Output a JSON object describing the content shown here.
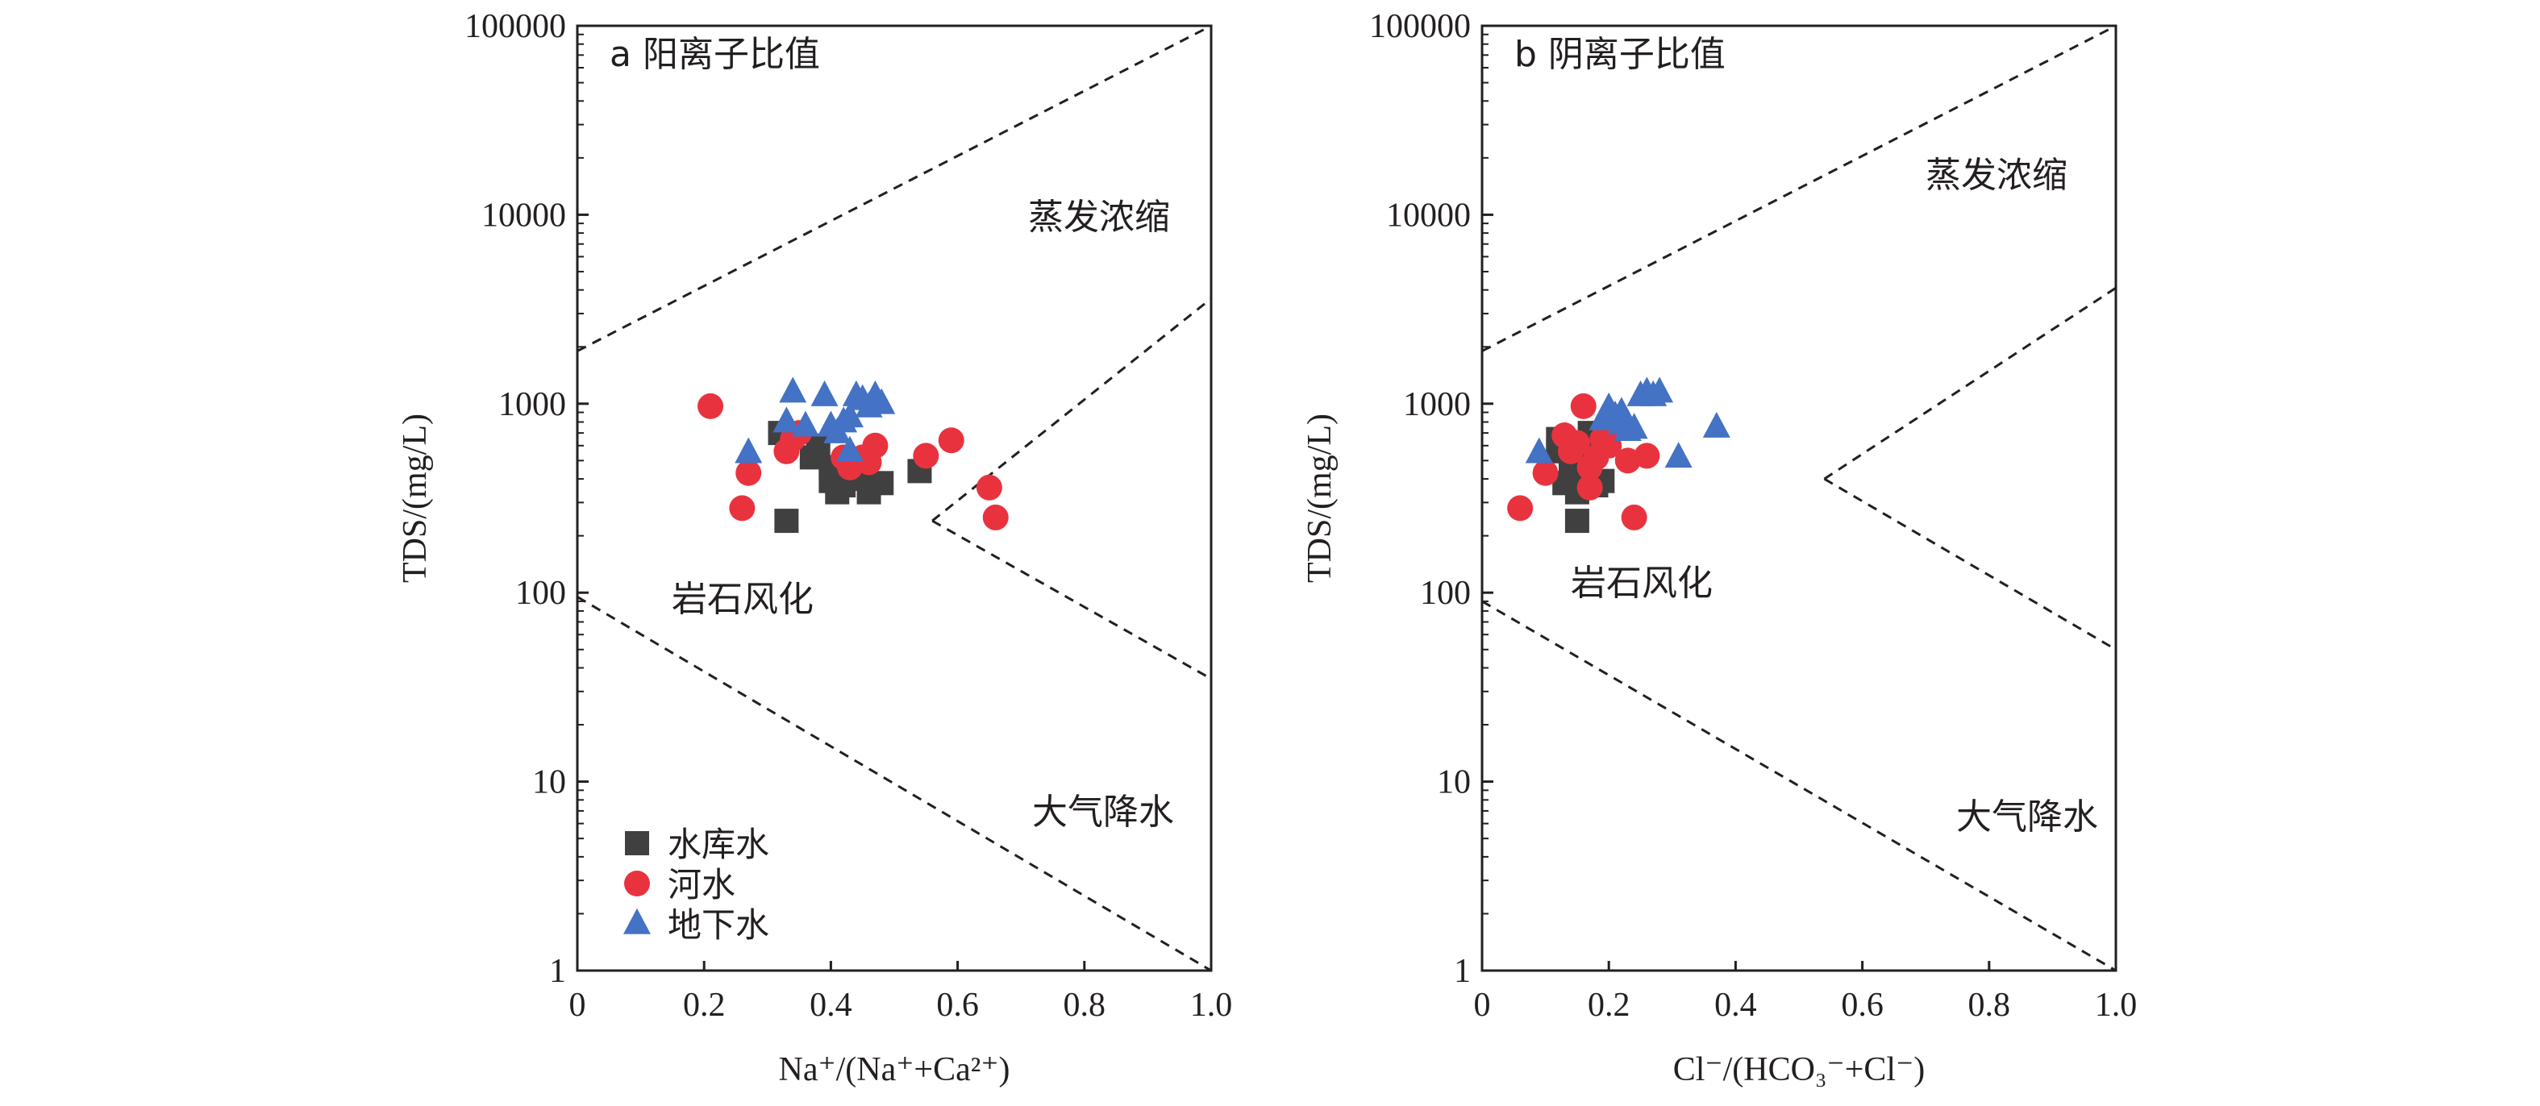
{
  "chart_data": [
    {
      "type": "scatter",
      "panel_label": "a 阳离子比值",
      "xlabel": "Na⁺/(Na⁺+Ca²⁺)",
      "ylabel": "TDS/(mg/L)",
      "xlim": [
        0,
        1.0
      ],
      "ylim": [
        1,
        100000
      ],
      "yscale": "log",
      "x_ticks": [
        "0",
        "0.2",
        "0.4",
        "0.6",
        "0.8",
        "1.0"
      ],
      "y_ticks": [
        "1",
        "10",
        "100",
        "1000",
        "10000",
        "100000"
      ],
      "regions": {
        "evaporation": "蒸发浓缩",
        "rock_weathering": "岩石风化",
        "precipitation": "大气降水"
      },
      "boundary_lines": [
        {
          "x": [
            0.0,
            1.0
          ],
          "y": [
            1900,
            100000
          ]
        },
        {
          "x": [
            0.0,
            1.0
          ],
          "y": [
            95,
            1
          ]
        },
        {
          "x": [
            0.56,
            1.0
          ],
          "y": [
            240,
            3600
          ]
        },
        {
          "x": [
            0.56,
            1.0
          ],
          "y": [
            240,
            35
          ]
        }
      ],
      "legend": {
        "position": "bottom-left"
      },
      "series": [
        {
          "name": "水库水",
          "marker": "square",
          "color": "#404040",
          "x": [
            0.32,
            0.33,
            0.37,
            0.38,
            0.4,
            0.41,
            0.42,
            0.43,
            0.45,
            0.46,
            0.48,
            0.54,
            0.4,
            0.44
          ],
          "y": [
            700,
            240,
            520,
            600,
            390,
            340,
            370,
            420,
            400,
            340,
            380,
            440,
            460,
            500
          ]
        },
        {
          "name": "河水",
          "marker": "circle",
          "color": "#e8333f",
          "x": [
            0.21,
            0.26,
            0.27,
            0.33,
            0.34,
            0.35,
            0.42,
            0.43,
            0.45,
            0.46,
            0.47,
            0.55,
            0.59,
            0.65,
            0.66
          ],
          "y": [
            970,
            280,
            430,
            560,
            650,
            700,
            520,
            460,
            520,
            490,
            600,
            530,
            640,
            360,
            250
          ]
        },
        {
          "name": "地下水",
          "marker": "triangle",
          "color": "#4472c4",
          "x": [
            0.27,
            0.34,
            0.33,
            0.36,
            0.39,
            0.4,
            0.42,
            0.43,
            0.44,
            0.45,
            0.46,
            0.47,
            0.48,
            0.43,
            0.41
          ],
          "y": [
            550,
            1150,
            800,
            760,
            1100,
            760,
            800,
            850,
            1100,
            1050,
            960,
            1100,
            1000,
            560,
            700
          ]
        }
      ]
    },
    {
      "type": "scatter",
      "panel_label": "b 阴离子比值",
      "xlabel": "Cl⁻/(HCO₃⁻+Cl⁻)",
      "ylabel": "TDS/(mg/L)",
      "xlim": [
        0,
        1.0
      ],
      "ylim": [
        1,
        100000
      ],
      "yscale": "log",
      "x_ticks": [
        "0",
        "0.2",
        "0.4",
        "0.6",
        "0.8",
        "1.0"
      ],
      "y_ticks": [
        "1",
        "10",
        "100",
        "1000",
        "10000",
        "100000"
      ],
      "regions": {
        "evaporation": "蒸发浓缩",
        "rock_weathering": "岩石风化",
        "precipitation": "大气降水"
      },
      "boundary_lines": [
        {
          "x": [
            0.0,
            1.0
          ],
          "y": [
            1900,
            100000
          ]
        },
        {
          "x": [
            0.0,
            1.0
          ],
          "y": [
            90,
            1
          ]
        },
        {
          "x": [
            0.54,
            1.0
          ],
          "y": [
            400,
            4100
          ]
        },
        {
          "x": [
            0.54,
            1.0
          ],
          "y": [
            400,
            50
          ]
        }
      ],
      "series": [
        {
          "name": "水库水",
          "marker": "square",
          "color": "#404040",
          "x": [
            0.12,
            0.13,
            0.14,
            0.15,
            0.15,
            0.16,
            0.17,
            0.18,
            0.19,
            0.12,
            0.16,
            0.18,
            0.14,
            0.17
          ],
          "y": [
            650,
            380,
            420,
            240,
            340,
            520,
            700,
            600,
            390,
            560,
            460,
            370,
            500,
            420
          ]
        },
        {
          "name": "河水",
          "marker": "circle",
          "color": "#e8333f",
          "x": [
            0.06,
            0.1,
            0.13,
            0.14,
            0.15,
            0.16,
            0.17,
            0.18,
            0.19,
            0.2,
            0.21,
            0.23,
            0.24,
            0.26,
            0.17
          ],
          "y": [
            280,
            430,
            680,
            560,
            620,
            970,
            460,
            520,
            650,
            600,
            740,
            500,
            250,
            530,
            360
          ]
        },
        {
          "name": "地下水",
          "marker": "triangle",
          "color": "#4472c4",
          "x": [
            0.09,
            0.19,
            0.2,
            0.21,
            0.22,
            0.23,
            0.24,
            0.25,
            0.26,
            0.27,
            0.28,
            0.31,
            0.37,
            0.22
          ],
          "y": [
            550,
            820,
            950,
            860,
            780,
            720,
            740,
            1100,
            1150,
            1100,
            1150,
            520,
            750,
            900
          ]
        }
      ]
    }
  ]
}
